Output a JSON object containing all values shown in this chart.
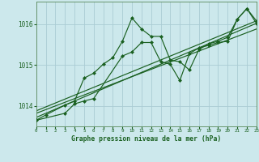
{
  "title": "Graphe pression niveau de la mer (hPa)",
  "bg_color": "#cce8ec",
  "grid_color": "#aaccd4",
  "line_color": "#1a6020",
  "xlim": [
    0,
    23
  ],
  "ylim": [
    1013.5,
    1016.55
  ],
  "yticks": [
    1014,
    1015,
    1016
  ],
  "xticks": [
    0,
    1,
    2,
    3,
    4,
    5,
    6,
    7,
    8,
    9,
    10,
    11,
    12,
    13,
    14,
    15,
    16,
    17,
    18,
    19,
    20,
    21,
    22,
    23
  ],
  "series1_x": [
    0,
    1,
    3,
    4,
    5,
    6,
    7,
    8,
    9,
    10,
    11,
    12,
    13,
    14,
    15,
    16,
    17,
    18,
    19,
    20,
    21,
    22,
    23
  ],
  "series1_y": [
    1013.65,
    1013.78,
    1014.02,
    1014.12,
    1014.68,
    1014.8,
    1015.02,
    1015.18,
    1015.58,
    1016.15,
    1015.88,
    1015.7,
    1015.7,
    1015.12,
    1015.08,
    1014.88,
    1015.38,
    1015.52,
    1015.58,
    1015.68,
    1016.12,
    1016.38,
    1016.08
  ],
  "series2_x": [
    0,
    3,
    4,
    5,
    6,
    9,
    10,
    11,
    12,
    13,
    14,
    15,
    16,
    17,
    18,
    19,
    20,
    21,
    22,
    23
  ],
  "series2_y": [
    1013.65,
    1013.82,
    1014.05,
    1014.12,
    1014.18,
    1015.22,
    1015.32,
    1015.55,
    1015.55,
    1015.08,
    1015.02,
    1014.62,
    1015.28,
    1015.42,
    1015.48,
    1015.55,
    1015.58,
    1016.12,
    1016.38,
    1016.02
  ],
  "trend1_x": [
    0,
    23
  ],
  "trend1_y": [
    1013.72,
    1016.02
  ],
  "trend2_x": [
    0,
    23
  ],
  "trend2_y": [
    1013.82,
    1015.88
  ],
  "trend3_x": [
    0,
    23
  ],
  "trend3_y": [
    1013.88,
    1016.08
  ]
}
